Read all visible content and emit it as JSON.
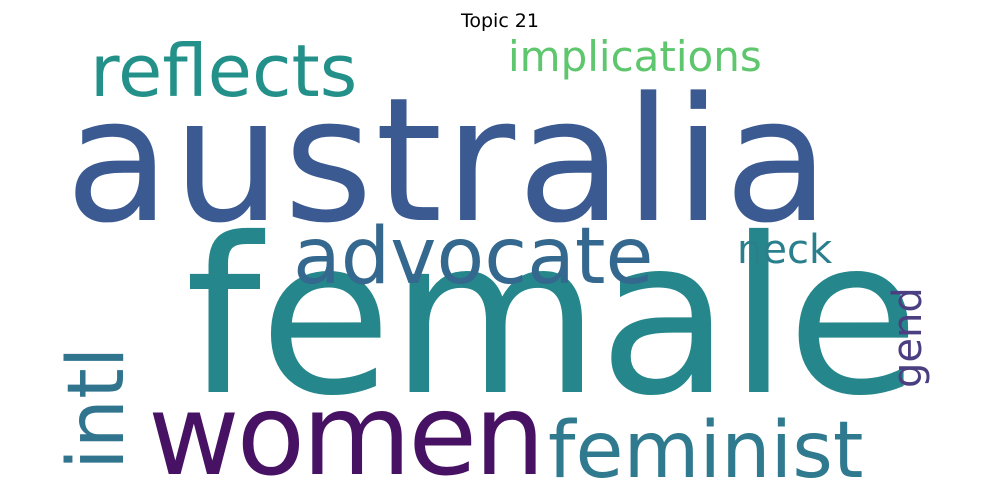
{
  "title": "Topic 21",
  "words": {
    "australia": {
      "text": "australia",
      "color": "#3b5a92"
    },
    "female": {
      "text": "female",
      "color": "#25878b"
    },
    "women": {
      "text": "women",
      "color": "#471263"
    },
    "reflects": {
      "text": "reflects",
      "color": "#23918a"
    },
    "implications": {
      "text": "implications",
      "color": "#5ec66d"
    },
    "advocate": {
      "text": "advocate",
      "color": "#34688e"
    },
    "neck": {
      "text": "neck",
      "color": "#2a7f8d"
    },
    "feminist": {
      "text": "feminist",
      "color": "#2f7a8e"
    },
    "intl": {
      "text": "intl",
      "color": "#31748e"
    },
    "gend": {
      "text": "gend",
      "color": "#4b3f82"
    }
  }
}
